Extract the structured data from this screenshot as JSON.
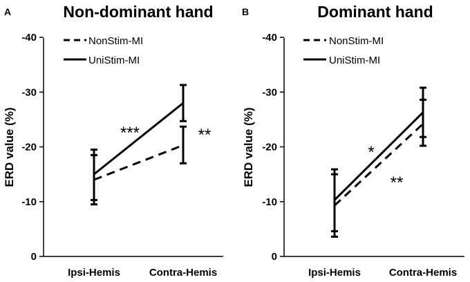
{
  "chart_data": [
    {
      "panel_label": "A",
      "type": "line",
      "title": "Non-dominant hand",
      "ylabel": "ERD value (%)",
      "xlabel": "",
      "categories": [
        "Ipsi-Hemis",
        "Contra-Hemis"
      ],
      "ylim": [
        0,
        -40
      ],
      "yticks": [
        "0",
        "-10",
        "-20",
        "-30",
        "-40"
      ],
      "yticks_values": [
        0,
        -10,
        -20,
        -30,
        -40
      ],
      "series": [
        {
          "name": "NonStim-MI",
          "style": "dashed",
          "values": [
            -14.0,
            -20.3
          ],
          "err_low": [
            -9.5,
            -17.0
          ],
          "err_high": [
            -18.5,
            -23.7
          ]
        },
        {
          "name": "UniStim-MI",
          "style": "solid",
          "values": [
            -15.0,
            -28.0
          ],
          "err_low": [
            -10.3,
            -24.7
          ],
          "err_high": [
            -19.5,
            -31.3
          ]
        }
      ],
      "annotations": [
        "***",
        "**"
      ],
      "legend_position": "top-left",
      "grid": false
    },
    {
      "panel_label": "B",
      "type": "line",
      "title": "Dominant hand",
      "ylabel": "ERD value (%)",
      "xlabel": "",
      "categories": [
        "Ipsi-Hemis",
        "Contra-Hemis"
      ],
      "ylim": [
        0,
        -40
      ],
      "yticks": [
        "0",
        "-10",
        "-20",
        "-30",
        "-40"
      ],
      "yticks_values": [
        0,
        -10,
        -20,
        -30,
        -40
      ],
      "series": [
        {
          "name": "NonStim-MI",
          "style": "dashed",
          "values": [
            -9.3,
            -24.2
          ],
          "err_low": [
            -3.6,
            -20.2
          ],
          "err_high": [
            -15.0,
            -28.6
          ]
        },
        {
          "name": "UniStim-MI",
          "style": "solid",
          "values": [
            -10.3,
            -26.3
          ],
          "err_low": [
            -4.6,
            -21.8
          ],
          "err_high": [
            -15.9,
            -30.8
          ]
        }
      ],
      "annotations": [
        "*",
        "**"
      ],
      "legend_position": "top-left",
      "grid": false
    }
  ],
  "colors": {
    "ink": "#000000",
    "background": "#ffffff"
  }
}
